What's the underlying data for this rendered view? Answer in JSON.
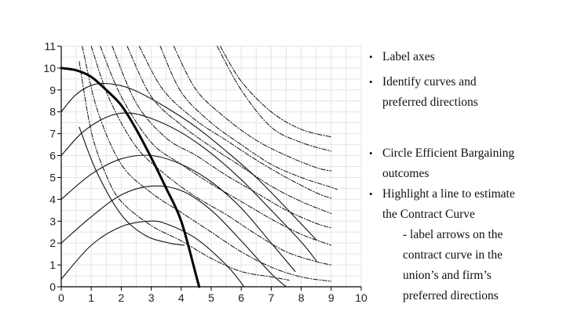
{
  "chart_data": {
    "type": "line",
    "title": "",
    "xlabel": "",
    "ylabel": "",
    "xlim": [
      0,
      10
    ],
    "ylim": [
      0,
      11
    ],
    "x_ticks": [
      "0",
      "1",
      "2",
      "3",
      "4",
      "5",
      "6",
      "7",
      "8",
      "9",
      "10"
    ],
    "y_ticks": [
      "0",
      "1",
      "2",
      "3",
      "4",
      "5",
      "6",
      "7",
      "8",
      "9",
      "10",
      "11"
    ],
    "grid": true,
    "series": [
      {
        "style": "solid",
        "points": [
          [
            0,
            0.35
          ],
          [
            1,
            1.9
          ],
          [
            2,
            2.75
          ],
          [
            2.9,
            3.0
          ],
          [
            3.5,
            2.88
          ],
          [
            4.5,
            2.2
          ],
          [
            5.5,
            1.0
          ],
          [
            6.1,
            0.0
          ]
        ]
      },
      {
        "style": "solid",
        "points": [
          [
            0,
            2.0
          ],
          [
            1,
            3.2
          ],
          [
            2,
            4.2
          ],
          [
            3,
            4.6
          ],
          [
            4,
            4.4
          ],
          [
            5,
            3.5
          ],
          [
            6,
            2.1
          ],
          [
            7,
            0.6
          ],
          [
            7.5,
            0.0
          ]
        ]
      },
      {
        "style": "solid",
        "points": [
          [
            0,
            4.0
          ],
          [
            1,
            5.15
          ],
          [
            2,
            5.85
          ],
          [
            3,
            6.0
          ],
          [
            4,
            5.6
          ],
          [
            5,
            4.8
          ],
          [
            6,
            3.6
          ],
          [
            7,
            2.0
          ],
          [
            7.8,
            0.7
          ]
        ]
      },
      {
        "style": "solid",
        "points": [
          [
            0,
            6.0
          ],
          [
            0.7,
            7.05
          ],
          [
            1.5,
            7.75
          ],
          [
            2.2,
            7.95
          ],
          [
            3,
            7.7
          ],
          [
            4,
            7.05
          ],
          [
            5,
            6.1
          ],
          [
            6,
            4.9
          ],
          [
            7,
            3.5
          ],
          [
            8,
            2.05
          ],
          [
            8.5,
            1.2
          ]
        ]
      },
      {
        "style": "solid",
        "points": [
          [
            0,
            8.0
          ],
          [
            0.5,
            8.8
          ],
          [
            1.1,
            9.25
          ],
          [
            1.8,
            9.25
          ],
          [
            2.5,
            8.95
          ],
          [
            3.5,
            8.2
          ],
          [
            4.5,
            7.3
          ],
          [
            5.5,
            6.2
          ],
          [
            6.5,
            5.0
          ],
          [
            7.5,
            3.6
          ],
          [
            8.5,
            2.15
          ]
        ]
      },
      {
        "style": "solid",
        "points": [
          [
            0.6,
            7.3
          ],
          [
            1.2,
            5.2
          ],
          [
            2,
            3.3
          ],
          [
            2.8,
            2.35
          ],
          [
            3.6,
            2.0
          ],
          [
            4.1,
            1.9
          ]
        ]
      },
      {
        "style": "contract",
        "points": [
          [
            0,
            10.0
          ],
          [
            0.5,
            9.9
          ],
          [
            1,
            9.6
          ],
          [
            1.5,
            9.0
          ],
          [
            2,
            8.3
          ],
          [
            2.5,
            7.2
          ],
          [
            3,
            5.9
          ],
          [
            3.5,
            4.5
          ],
          [
            4,
            3.0
          ],
          [
            4.5,
            0.5
          ],
          [
            4.6,
            0.0
          ]
        ]
      },
      {
        "style": "dashdot",
        "points": [
          [
            0.6,
            10.3
          ],
          [
            1,
            7.1
          ],
          [
            1.5,
            5.1
          ],
          [
            2,
            3.9
          ],
          [
            3,
            2.8
          ],
          [
            4,
            2.1
          ],
          [
            5,
            1.3
          ],
          [
            6,
            0.7
          ],
          [
            7,
            0.45
          ],
          [
            7.6,
            0.3
          ]
        ]
      },
      {
        "style": "dashdot",
        "points": [
          [
            0.7,
            11.0
          ],
          [
            1.2,
            8.1
          ],
          [
            2,
            5.6
          ],
          [
            3,
            4.3
          ],
          [
            4,
            3.4
          ],
          [
            5,
            2.5
          ],
          [
            6,
            1.6
          ],
          [
            7,
            0.9
          ],
          [
            8,
            0.45
          ],
          [
            9,
            0.25
          ]
        ]
      },
      {
        "style": "dashdot",
        "points": [
          [
            1.0,
            11.0
          ],
          [
            1.6,
            8.6
          ],
          [
            2.5,
            6.4
          ],
          [
            3.5,
            5.1
          ],
          [
            4.5,
            4.1
          ],
          [
            5.5,
            3.3
          ],
          [
            6.5,
            2.4
          ],
          [
            7.5,
            1.6
          ],
          [
            8.5,
            1.15
          ],
          [
            9,
            1.0
          ]
        ]
      },
      {
        "style": "dashdot",
        "points": [
          [
            1.3,
            11.0
          ],
          [
            2,
            8.7
          ],
          [
            3,
            6.6
          ],
          [
            4,
            5.6
          ],
          [
            5,
            4.7
          ],
          [
            6,
            3.9
          ],
          [
            7,
            3.1
          ],
          [
            8,
            2.4
          ],
          [
            9,
            1.9
          ]
        ]
      },
      {
        "style": "dashdot",
        "points": [
          [
            1.7,
            11.0
          ],
          [
            2.5,
            8.4
          ],
          [
            3.5,
            6.8
          ],
          [
            4.5,
            6.0
          ],
          [
            5.5,
            5.1
          ],
          [
            6.5,
            4.3
          ],
          [
            7.5,
            3.5
          ],
          [
            8.5,
            2.9
          ],
          [
            9,
            2.7
          ]
        ]
      },
      {
        "style": "dashdot",
        "points": [
          [
            2.2,
            11.0
          ],
          [
            3,
            8.7
          ],
          [
            4,
            7.4
          ],
          [
            5,
            6.4
          ],
          [
            6,
            5.5
          ],
          [
            7,
            4.6
          ],
          [
            8,
            3.9
          ],
          [
            9,
            3.35
          ]
        ]
      },
      {
        "style": "dashdot",
        "points": [
          [
            2.6,
            11.0
          ],
          [
            3.4,
            9.0
          ],
          [
            4.5,
            7.6
          ],
          [
            5.5,
            6.7
          ],
          [
            6.5,
            5.8
          ],
          [
            7.5,
            5.0
          ],
          [
            8.5,
            4.3
          ],
          [
            9,
            4.05
          ]
        ]
      },
      {
        "style": "dashdot",
        "points": [
          [
            3.3,
            11.0
          ],
          [
            4,
            8.9
          ],
          [
            5,
            7.5
          ],
          [
            6,
            6.5
          ],
          [
            7,
            5.6
          ],
          [
            8,
            5.0
          ],
          [
            9,
            4.55
          ],
          [
            9.2,
            4.45
          ]
        ]
      },
      {
        "style": "dashdot",
        "points": [
          [
            3.75,
            11.0
          ],
          [
            4.5,
            9.0
          ],
          [
            5.5,
            7.7
          ],
          [
            6.5,
            6.7
          ],
          [
            7.5,
            6.0
          ],
          [
            8.5,
            5.45
          ],
          [
            9,
            5.3
          ]
        ]
      },
      {
        "style": "dashdot",
        "points": [
          [
            5.3,
            11.0
          ],
          [
            6,
            9.4
          ],
          [
            7,
            8.0
          ],
          [
            8,
            7.2
          ],
          [
            9,
            6.85
          ]
        ]
      },
      {
        "style": "dashdot",
        "points": [
          [
            5.2,
            11.0
          ],
          [
            6,
            9.0
          ],
          [
            7,
            7.3
          ],
          [
            8,
            6.6
          ],
          [
            9,
            6.2
          ]
        ]
      }
    ]
  },
  "notes": {
    "items": [
      {
        "text": "Label axes"
      },
      {
        "text": "Identify curves and",
        "text2": "preferred directions"
      },
      {
        "text": "Circle Efficient Bargaining",
        "text2": "outcomes"
      },
      {
        "text": "Highlight a line to estimate",
        "text2": "the Contract Curve"
      }
    ],
    "sub_lines": [
      "- label arrows on the",
      "contract curve in the",
      "union’s and firm’s",
      "preferred directions"
    ],
    "bullet": "•"
  }
}
